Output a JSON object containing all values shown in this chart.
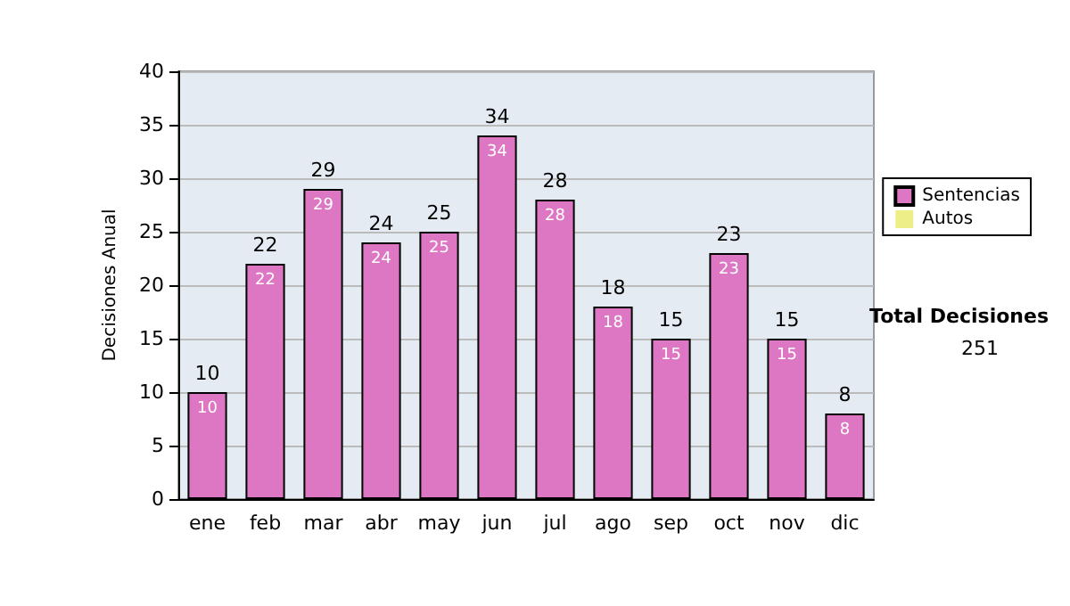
{
  "chart_data": {
    "type": "bar",
    "ylabel": "Decisiones Anual",
    "categories": [
      "ene",
      "feb",
      "mar",
      "abr",
      "may",
      "jun",
      "jul",
      "ago",
      "sep",
      "oct",
      "nov",
      "dic"
    ],
    "series": [
      {
        "name": "Sentencias",
        "color": "#dd77c4",
        "values": [
          10,
          22,
          29,
          24,
          25,
          34,
          28,
          18,
          15,
          23,
          15,
          8
        ],
        "value_labels": [
          "10",
          "22",
          "29",
          "24",
          "25",
          "34",
          "28",
          "18",
          "15",
          "23",
          "15",
          "8"
        ]
      },
      {
        "name": "Autos",
        "color": "#eeee88",
        "values": [
          0,
          0,
          0,
          0,
          0,
          0,
          0,
          0,
          0,
          0,
          0,
          0
        ]
      }
    ],
    "stacked": true,
    "totals": [
      "10",
      "22",
      "29",
      "24",
      "25",
      "34",
      "28",
      "18",
      "15",
      "23",
      "15",
      "8"
    ],
    "ylim": [
      0,
      40
    ],
    "yticks": [
      0,
      5,
      10,
      15,
      20,
      25,
      30,
      35,
      40
    ],
    "grid": "y",
    "legend": "right",
    "annotations": [
      "Total Decisiones",
      "251"
    ]
  }
}
